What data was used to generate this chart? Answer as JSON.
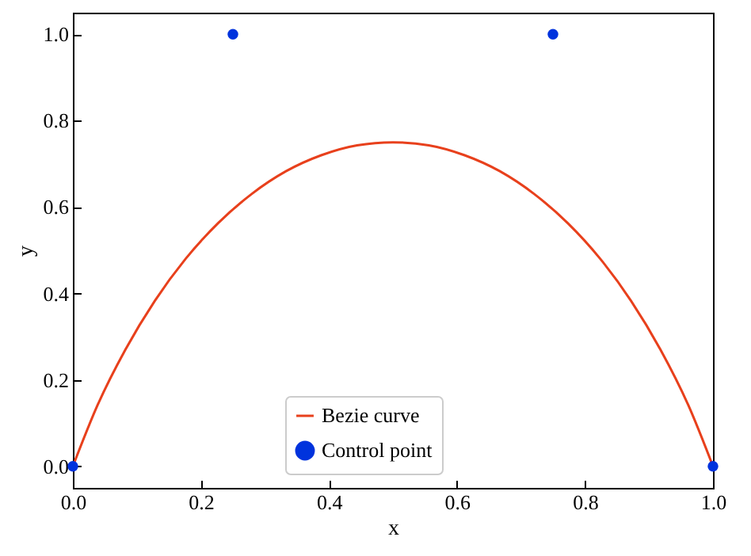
{
  "chart_data": {
    "type": "line",
    "xlabel": "x",
    "ylabel": "y",
    "xlim": [
      0,
      1
    ],
    "ylim": [
      -0.05,
      1.05
    ],
    "xticks": [
      {
        "value": 0,
        "label": "0.0"
      },
      {
        "value": 0.2,
        "label": "0.2"
      },
      {
        "value": 0.4,
        "label": "0.4"
      },
      {
        "value": 0.6,
        "label": "0.6"
      },
      {
        "value": 0.8,
        "label": "0.8"
      },
      {
        "value": 1,
        "label": "1.0"
      }
    ],
    "yticks": [
      {
        "value": 0,
        "label": "0.0"
      },
      {
        "value": 0.2,
        "label": "0.2"
      },
      {
        "value": 0.4,
        "label": "0.4"
      },
      {
        "value": 0.6,
        "label": "0.6"
      },
      {
        "value": 0.8,
        "label": "0.8"
      },
      {
        "value": 1,
        "label": "1.0"
      }
    ],
    "grid": false,
    "legend": "bottom",
    "series": [
      {
        "name": "Bezie curve",
        "type": "line",
        "color": "#e8401c",
        "line_style": "solid",
        "x": [
          0,
          0.039,
          0.082,
          0.128,
          0.176,
          0.227,
          0.279,
          0.333,
          0.388,
          0.444,
          0.5,
          0.556,
          0.612,
          0.667,
          0.721,
          0.773,
          0.824,
          0.872,
          0.918,
          0.961,
          1
        ],
        "values": [
          0,
          0.143,
          0.27,
          0.383,
          0.48,
          0.563,
          0.63,
          0.683,
          0.72,
          0.743,
          0.75,
          0.743,
          0.72,
          0.683,
          0.63,
          0.563,
          0.48,
          0.383,
          0.27,
          0.143,
          0
        ]
      },
      {
        "name": "Control point",
        "type": "scatter",
        "color": "#0033dd",
        "marker": "circle",
        "x": [
          0,
          0.25,
          0.75,
          1
        ],
        "values": [
          0,
          1,
          1,
          0
        ]
      }
    ]
  }
}
